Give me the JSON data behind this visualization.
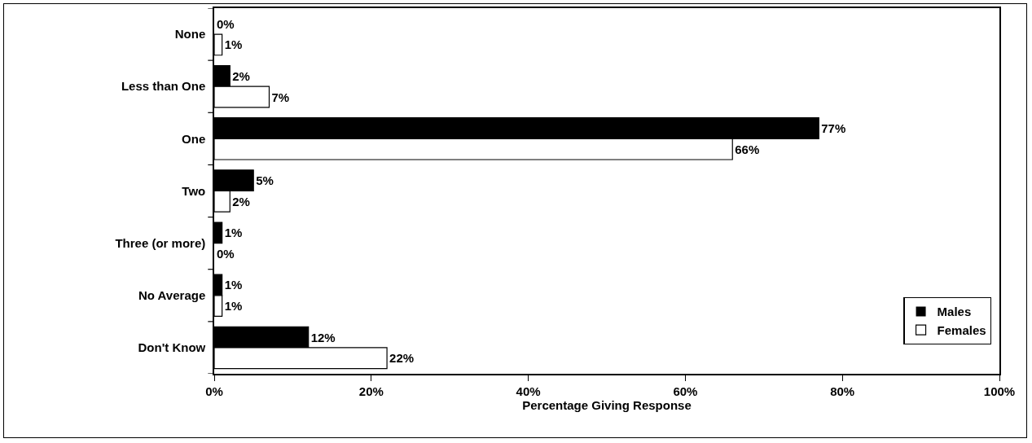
{
  "chart_data": {
    "type": "bar",
    "orientation": "horizontal",
    "xlabel": "Percentage Giving Response",
    "categories": [
      "None",
      "Less than One",
      "One",
      "Two",
      "Three (or more)",
      "No Average",
      "Don't Know"
    ],
    "series": [
      {
        "name": "Males",
        "color": "#000000",
        "values": [
          0,
          2,
          77,
          5,
          1,
          1,
          12
        ],
        "value_labels": [
          "0%",
          "2%",
          "77%",
          "5%",
          "1%",
          "1%",
          "12%"
        ]
      },
      {
        "name": "Females",
        "color": "#ffffff",
        "values": [
          1,
          7,
          66,
          2,
          0,
          1,
          22
        ],
        "value_labels": [
          "1%",
          "7%",
          "66%",
          "2%",
          "0%",
          "1%",
          "22%"
        ]
      }
    ],
    "xlim": [
      0,
      100
    ],
    "xticks": [
      {
        "value": 0,
        "label": "0%"
      },
      {
        "value": 20,
        "label": "20%"
      },
      {
        "value": 40,
        "label": "40%"
      },
      {
        "value": 60,
        "label": "60%"
      },
      {
        "value": 80,
        "label": "80%"
      },
      {
        "value": 100,
        "label": "100%"
      }
    ],
    "grid": false,
    "legend": "bottom right"
  }
}
